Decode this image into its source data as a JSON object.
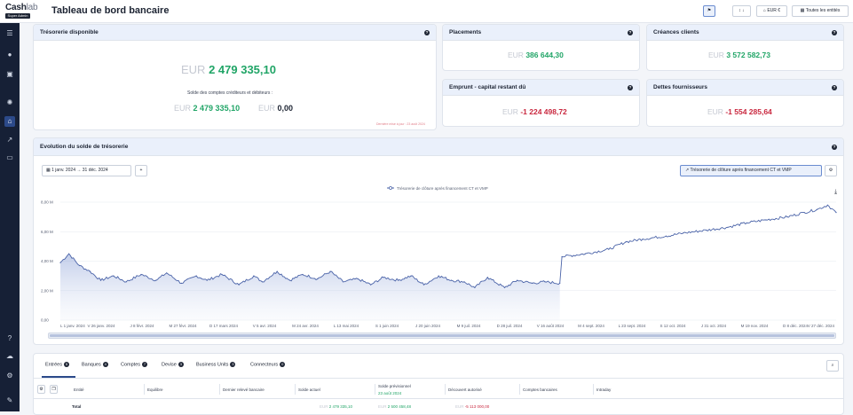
{
  "app": {
    "logo_text": "Cash",
    "logo_text_light": "lab",
    "logo_sub": "Super Admin",
    "title": "Tableau de bord bancaire"
  },
  "toolbar": {
    "pin_label": "⚑",
    "sort_label": "↕ ↓",
    "currency_label": "EUR €",
    "entities_label": "Toutes les entités"
  },
  "sidebar": {
    "icons": [
      "menu-icon",
      "user-icon",
      "briefcase-icon",
      "settings-icon",
      "bank-icon",
      "chart-icon",
      "card-icon",
      "help-icon",
      "cloud-icon",
      "gear-icon",
      "wrench-icon"
    ]
  },
  "cards": {
    "tresorerie": {
      "title": "Trésorerie disponible",
      "currency": "EUR",
      "amount": "2 479 335,10",
      "description": "Solde des comptes créditeurs et débiteurs :",
      "credit_currency": "EUR",
      "credit_amount": "2 479 335,10",
      "debit_currency": "EUR",
      "debit_amount": "0,00",
      "footnote": "Dernière mise à jour : 23 août 2024"
    },
    "placements": {
      "title": "Placements",
      "currency": "EUR",
      "amount": "386 644,30"
    },
    "creances": {
      "title": "Créances clients",
      "currency": "EUR",
      "amount": "3 572 582,73"
    },
    "emprunt": {
      "title": "Emprunt - capital restant dû",
      "currency": "EUR",
      "amount": "-1 224 498,72"
    },
    "dettes": {
      "title": "Dettes fournisseurs",
      "currency": "EUR",
      "amount": "-1 554 285,64"
    }
  },
  "evolution": {
    "title": "Evolution du solde de trésorerie",
    "date_from": "1 janv. 2024",
    "date_to": "31 déc. 2024",
    "add_label": "+",
    "series_button": "Trésorerie de clôture après financement CT et VMP"
  },
  "chart_data": {
    "type": "area",
    "title": "",
    "xlabel": "",
    "ylabel": "",
    "legend_position": "top-center",
    "grid": true,
    "ylim": [
      0,
      8000000
    ],
    "y_ticks": [
      "0,00",
      "2,00 M",
      "4,00 M",
      "6,00 M",
      "8,00 M"
    ],
    "x_ticks": [
      "L 1 janv. 2024",
      "V 26 janv. 2024",
      "J 8 févr. 2024",
      "M 27 févr. 2024",
      "D 17 mars 2024",
      "V 5 avr. 2024",
      "M 24 avr. 2024",
      "L 13 mai 2024",
      "S 1 juin 2024",
      "J 20 juin 2024",
      "M 9 juil. 2024",
      "D 28 juil. 2024",
      "V 16 août 2024",
      "M 4 sept. 2024",
      "L 23 sept. 2024",
      "S 12 oct. 2024",
      "J 31 oct. 2024",
      "M 19 nov. 2024",
      "D 8 déc. 2024",
      "V 27 déc. 2024"
    ],
    "series": [
      {
        "name": "Trésorerie de clôture après financement CT et VMP",
        "color": "#4a63a8",
        "x": [
          "2024-01-01",
          "2024-01-05",
          "2024-01-10",
          "2024-01-15",
          "2024-01-20",
          "2024-01-26",
          "2024-02-01",
          "2024-02-08",
          "2024-02-15",
          "2024-02-20",
          "2024-02-27",
          "2024-03-05",
          "2024-03-10",
          "2024-03-17",
          "2024-03-25",
          "2024-04-01",
          "2024-04-05",
          "2024-04-12",
          "2024-04-18",
          "2024-04-24",
          "2024-05-01",
          "2024-05-07",
          "2024-05-13",
          "2024-05-20",
          "2024-05-26",
          "2024-06-01",
          "2024-06-08",
          "2024-06-14",
          "2024-06-20",
          "2024-06-27",
          "2024-07-03",
          "2024-07-09",
          "2024-07-14",
          "2024-07-20",
          "2024-07-28",
          "2024-08-03",
          "2024-08-10",
          "2024-08-16",
          "2024-08-23",
          "2024-08-24",
          "2024-09-04",
          "2024-09-15",
          "2024-09-23",
          "2024-10-01",
          "2024-10-12",
          "2024-10-20",
          "2024-10-31",
          "2024-11-10",
          "2024-11-19",
          "2024-11-28",
          "2024-12-08",
          "2024-12-16",
          "2024-12-22",
          "2024-12-27",
          "2024-12-31"
        ],
        "values": [
          3900000,
          4500000,
          3700000,
          3300000,
          2700000,
          3000000,
          2600000,
          3100000,
          2700000,
          3200000,
          2500000,
          3000000,
          2700000,
          3100000,
          2400000,
          3000000,
          2600000,
          3300000,
          2700000,
          3100000,
          2800000,
          3300000,
          2600000,
          2800000,
          2400000,
          2900000,
          2700000,
          3000000,
          2400000,
          3000000,
          2700000,
          2600000,
          2200000,
          2900000,
          2200000,
          2700000,
          2500000,
          2600000,
          2500000,
          4300000,
          4500000,
          4800000,
          5300000,
          5500000,
          5700000,
          5900000,
          6100000,
          6300000,
          6600000,
          6800000,
          7000000,
          7300000,
          7500000,
          7800000,
          7300000
        ]
      }
    ]
  },
  "table": {
    "tabs": [
      {
        "label": "Entrées",
        "count": "5"
      },
      {
        "label": "Banques",
        "count": "4"
      },
      {
        "label": "Comptes",
        "count": "7"
      },
      {
        "label": "Devise",
        "count": "3"
      },
      {
        "label": "Business Units",
        "count": "3"
      },
      {
        "label": "Connecteurs",
        "count": "0"
      }
    ],
    "columns": [
      "Entité",
      "Equilibre",
      "Dernier relevé bancaire",
      "Solde actuel",
      "Solde prévisionnel",
      "Découvert autorisé",
      "Comptes bancaires",
      "Intraday"
    ],
    "forecast_date": "23 août 2024",
    "total_label": "Total",
    "total_currency": "EUR",
    "total_current": "2 479 335,10",
    "total_forecast": "2 500 458,48",
    "total_overdraft": "-5 113 000,00"
  }
}
